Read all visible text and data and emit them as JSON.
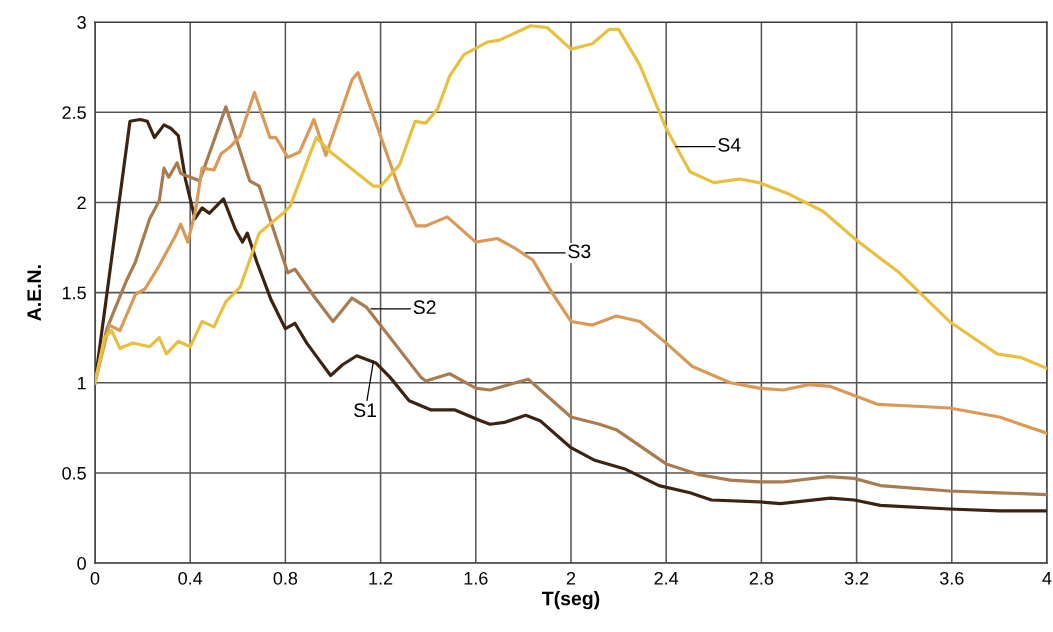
{
  "chart_data": {
    "type": "line",
    "xlabel": "T(seg)",
    "ylabel": "A.E.N.",
    "xlim": [
      0,
      4
    ],
    "ylim": [
      0,
      3
    ],
    "xticks": [
      0,
      {
        "value": 0.4,
        "label": "0.4"
      },
      {
        "value": 0.8,
        "label": "0.8"
      },
      {
        "value": 1.2,
        "label": "1.2"
      },
      {
        "value": 1.6,
        "label": "1.6"
      },
      2,
      {
        "value": 2.4,
        "label": "2.4"
      },
      {
        "value": 2.8,
        "label": "2.8"
      },
      {
        "value": 3.2,
        "label": "3.2"
      },
      {
        "value": 3.6,
        "label": "3.6"
      },
      4
    ],
    "yticks": [
      0,
      0.5,
      1,
      1.5,
      2,
      2.5,
      3
    ],
    "grid": true,
    "marker": "none",
    "line_style": "solid",
    "series": [
      {
        "color": "#3d2412",
        "x": [
          0,
          0.147,
          0.19,
          0.22,
          0.25,
          0.29,
          0.32,
          0.35,
          0.38,
          0.42,
          0.45,
          0.48,
          0.54,
          0.59,
          0.62,
          0.64,
          0.68,
          0.74,
          0.8,
          0.84,
          0.89,
          0.94,
          0.99,
          1.04,
          1.1,
          1.18,
          1.24,
          1.32,
          1.41,
          1.51,
          1.62,
          1.66,
          1.72,
          1.81,
          1.87,
          2.0,
          2.1,
          2.23,
          2.37,
          2.5,
          2.59,
          2.79,
          2.88,
          3.09,
          3.19,
          3.3,
          3.59,
          3.8,
          4.0
        ],
        "values": [
          1.0,
          2.45,
          2.46,
          2.45,
          2.36,
          2.43,
          2.41,
          2.37,
          2.13,
          1.91,
          1.97,
          1.94,
          2.02,
          1.85,
          1.78,
          1.83,
          1.67,
          1.46,
          1.3,
          1.33,
          1.22,
          1.13,
          1.04,
          1.1,
          1.15,
          1.11,
          1.03,
          0.9,
          0.85,
          0.85,
          0.79,
          0.77,
          0.78,
          0.82,
          0.79,
          0.64,
          0.57,
          0.52,
          0.43,
          0.39,
          0.35,
          0.34,
          0.33,
          0.36,
          0.35,
          0.32,
          0.3,
          0.29,
          0.29
        ]
      },
      {
        "color": "#a87b50",
        "x": [
          0,
          0.05,
          0.13,
          0.17,
          0.23,
          0.27,
          0.29,
          0.31,
          0.345,
          0.36,
          0.44,
          0.55,
          0.65,
          0.69,
          0.81,
          0.84,
          0.92,
          1.0,
          1.08,
          1.14,
          1.37,
          1.39,
          1.49,
          1.6,
          1.66,
          1.82,
          2.0,
          2.12,
          2.19,
          2.4,
          2.54,
          2.67,
          2.79,
          2.89,
          3.08,
          3.19,
          3.3,
          3.59,
          3.8,
          4.0
        ],
        "values": [
          1.0,
          1.3,
          1.56,
          1.67,
          1.91,
          2.01,
          2.19,
          2.14,
          2.22,
          2.16,
          2.12,
          2.53,
          2.12,
          2.09,
          1.61,
          1.63,
          1.48,
          1.34,
          1.47,
          1.42,
          1.03,
          1.01,
          1.05,
          0.97,
          0.96,
          1.02,
          0.81,
          0.77,
          0.74,
          0.55,
          0.49,
          0.46,
          0.45,
          0.45,
          0.48,
          0.47,
          0.43,
          0.4,
          0.39,
          0.38
        ]
      },
      {
        "color": "#d99a57",
        "x": [
          0,
          0.06,
          0.105,
          0.17,
          0.21,
          0.27,
          0.34,
          0.36,
          0.39,
          0.42,
          0.45,
          0.5,
          0.53,
          0.57,
          0.61,
          0.67,
          0.735,
          0.76,
          0.81,
          0.86,
          0.92,
          0.97,
          1.08,
          1.105,
          1.28,
          1.35,
          1.39,
          1.48,
          1.6,
          1.69,
          1.76,
          1.84,
          1.92,
          2.0,
          2.09,
          2.19,
          2.29,
          2.4,
          2.51,
          2.67,
          2.79,
          2.89,
          3.0,
          3.09,
          3.29,
          3.45,
          3.59,
          3.8,
          4.0
        ],
        "values": [
          1.0,
          1.32,
          1.29,
          1.49,
          1.52,
          1.65,
          1.82,
          1.88,
          1.78,
          1.94,
          2.19,
          2.18,
          2.27,
          2.31,
          2.37,
          2.61,
          2.36,
          2.36,
          2.25,
          2.28,
          2.46,
          2.26,
          2.68,
          2.72,
          2.07,
          1.87,
          1.87,
          1.92,
          1.78,
          1.8,
          1.75,
          1.68,
          1.5,
          1.34,
          1.32,
          1.37,
          1.34,
          1.22,
          1.09,
          1.0,
          0.97,
          0.96,
          0.99,
          0.98,
          0.88,
          0.87,
          0.86,
          0.81,
          0.72
        ]
      },
      {
        "color": "#e8c040",
        "x": [
          0,
          0.04,
          0.07,
          0.105,
          0.12,
          0.16,
          0.23,
          0.27,
          0.3,
          0.35,
          0.4,
          0.45,
          0.5,
          0.55,
          0.61,
          0.69,
          0.79,
          0.82,
          0.93,
          0.99,
          1.17,
          1.2,
          1.28,
          1.345,
          1.39,
          1.44,
          1.49,
          1.55,
          1.65,
          1.7,
          1.83,
          1.9,
          2.0,
          2.09,
          2.16,
          2.2,
          2.29,
          2.4,
          2.5,
          2.6,
          2.71,
          2.79,
          2.91,
          3.06,
          3.2,
          3.3,
          3.38,
          3.59,
          3.79,
          3.89,
          4.0
        ],
        "values": [
          1.0,
          1.25,
          1.29,
          1.19,
          1.2,
          1.22,
          1.2,
          1.25,
          1.16,
          1.23,
          1.2,
          1.34,
          1.31,
          1.45,
          1.53,
          1.83,
          1.94,
          1.98,
          2.36,
          2.28,
          2.09,
          2.09,
          2.21,
          2.45,
          2.44,
          2.52,
          2.7,
          2.82,
          2.89,
          2.9,
          2.98,
          2.97,
          2.85,
          2.88,
          2.96,
          2.96,
          2.76,
          2.41,
          2.17,
          2.11,
          2.13,
          2.11,
          2.05,
          1.95,
          1.79,
          1.69,
          1.61,
          1.34,
          1.16,
          1.14,
          1.08
        ]
      }
    ],
    "annotations": [
      {
        "text": "S1",
        "x": 1.17,
        "y": 1.12
      },
      {
        "text": "S2",
        "x": 1.16,
        "y": 1.41
      },
      {
        "text": "S3",
        "x": 1.81,
        "y": 1.72
      },
      {
        "text": "S4",
        "x": 2.44,
        "y": 2.31
      }
    ]
  }
}
